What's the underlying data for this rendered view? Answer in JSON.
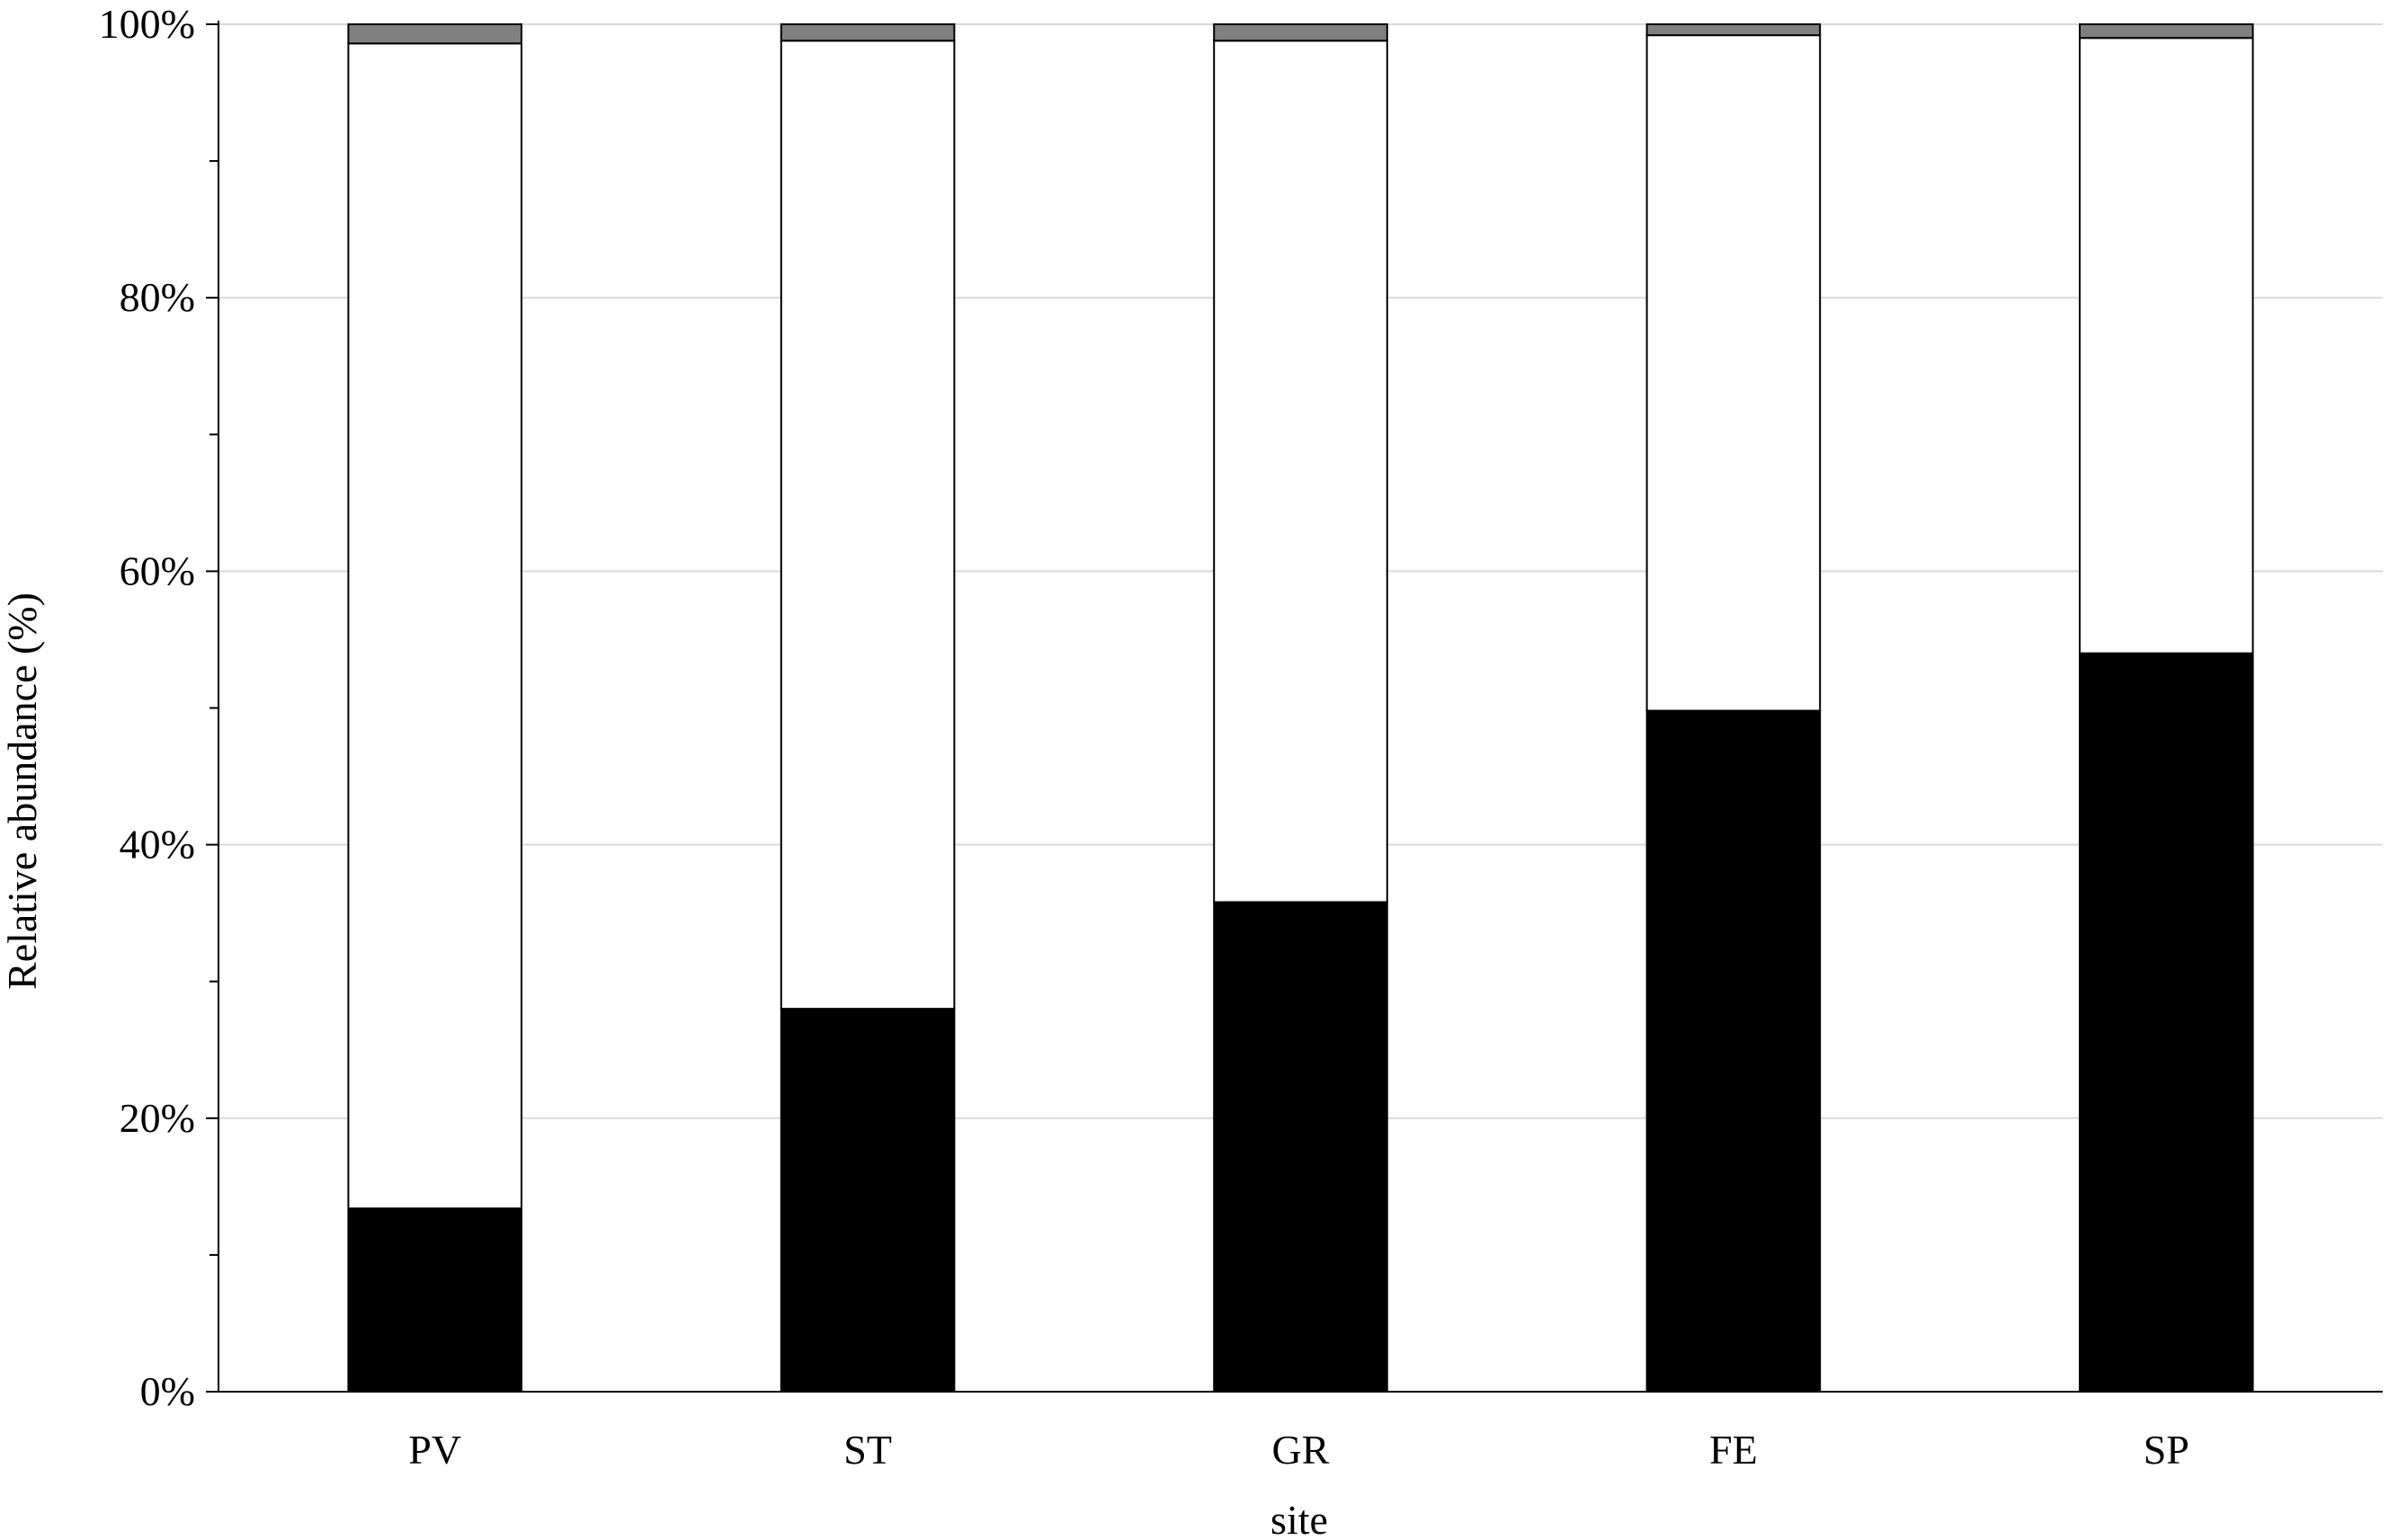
{
  "chart_data": {
    "type": "bar",
    "stacked": true,
    "percent": true,
    "title": "",
    "xlabel": "site",
    "ylabel": "Relative abundance (%)",
    "ylim": [
      0,
      100
    ],
    "yticks": [
      "0%",
      "20%",
      "40%",
      "60%",
      "80%",
      "100%"
    ],
    "grid": "horizontal",
    "legend": "none",
    "categories": [
      "PV",
      "ST",
      "GR",
      "FE",
      "SP"
    ],
    "series": [
      {
        "color": "#000000",
        "values": [
          13.4,
          28.0,
          35.8,
          49.8,
          54.0
        ]
      },
      {
        "color": "#ffffff",
        "values": [
          85.2,
          70.8,
          63.0,
          49.4,
          45.0
        ]
      },
      {
        "color": "#808080",
        "values": [
          1.4,
          1.2,
          1.2,
          0.8,
          1.0
        ]
      }
    ]
  }
}
